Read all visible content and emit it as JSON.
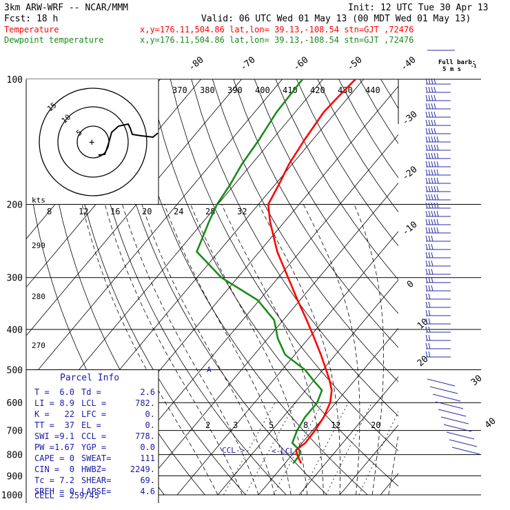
{
  "header": {
    "title": "3km ARW-WRF -- NCAR/MMM",
    "init": "Init: 12 UTC Tue 30 Apr 13",
    "fcst": "Fcst:   18 h",
    "valid": "Valid: 06 UTC Wed 01 May 13 (00 MDT Wed 01 May 13)",
    "temp_label": "Temperature",
    "temp_info": "x,y=176.11,504.86   lat,lon= 39.13,-108.54  stn=GJT ,72476",
    "dew_label": "Dewpoint temperature",
    "dew_info": "x,y=176.11,504.86   lat,lon= 39.13,-108.54  stn=GJT ,72476"
  },
  "colors": {
    "temperature": "#ff0000",
    "dewpoint": "#1a8a1a",
    "parcel_text": "#1a1aa8",
    "wind": "#2a2aa8"
  },
  "chart_data": {
    "type": "line",
    "title": "3km ARW-WRF -- NCAR/MMM",
    "ylabel": "",
    "y_scale": "log",
    "ylim": [
      1000,
      100
    ],
    "pressure_ticks": [
      "100",
      "200",
      "300",
      "400",
      "500",
      "600",
      "700",
      "800",
      "900",
      "1000"
    ],
    "isotherm_labels": [
      "-80",
      "-70",
      "-60",
      "-50",
      "-40",
      "-30",
      "-20",
      "-10",
      "0",
      "10",
      "20",
      "30",
      "40"
    ],
    "theta_labels": [
      "370",
      "380",
      "390",
      "400",
      "410",
      "420",
      "430",
      "440"
    ],
    "mixing_ratio_labels": [
      "2",
      "3",
      "5",
      "8",
      "12",
      "20"
    ],
    "temp_scale_labels": [
      "8",
      "12",
      "16",
      "20",
      "24",
      "28",
      "32"
    ],
    "temp_scale_unit": "kts",
    "theta_side_labels": [
      "290",
      "280",
      "270"
    ],
    "series": [
      {
        "name": "Temperature",
        "pressure": [
          840,
          820,
          800,
          780,
          750,
          700,
          650,
          600,
          560,
          530,
          500,
          460,
          420,
          380,
          340,
          300,
          260,
          220,
          200,
          180,
          160,
          140,
          120,
          110,
          100
        ],
        "temperature": [
          4.0,
          2.6,
          1.2,
          0.0,
          0.8,
          0.6,
          0.0,
          -1.4,
          -3.6,
          -6.2,
          -9.2,
          -13.6,
          -18.6,
          -24.2,
          -30.6,
          -37.6,
          -45.6,
          -53.6,
          -57.6,
          -59.0,
          -60.8,
          -62.0,
          -63.0,
          -62.6,
          -62.0
        ]
      },
      {
        "name": "Dewpoint temperature",
        "pressure": [
          840,
          820,
          800,
          780,
          750,
          700,
          650,
          600,
          560,
          530,
          500,
          460,
          420,
          380,
          340,
          300,
          260,
          220,
          200,
          180,
          160,
          140,
          120,
          110,
          100
        ],
        "temperature": [
          2.0,
          2.0,
          1.8,
          0.8,
          -2.4,
          -3.8,
          -4.6,
          -4.6,
          -6.0,
          -10.2,
          -14.4,
          -22.4,
          -27.6,
          -32.2,
          -40.4,
          -54.0,
          -65.4,
          -68.6,
          -70.2,
          -71.0,
          -72.4,
          -73.2,
          -74.6,
          -74.8,
          -75.0
        ]
      }
    ]
  },
  "hodograph": {
    "ring_labels": [
      "15",
      "10",
      "5"
    ],
    "plus": "+"
  },
  "wind_panel": {
    "title": "Full barb:",
    "subtitle": "5 m s",
    "exp": "-1"
  },
  "annotations": {
    "ccl": "CCL->",
    "lcl": "<-LCL"
  },
  "parcel_info": {
    "title": "Parcel Info",
    "rows": [
      {
        "l1": "T   =",
        "v1": "6.0",
        "l2": "Td  =",
        "v2": "2.6"
      },
      {
        "l1": "LI  =",
        "v1": "8.9",
        "l2": "LCL =",
        "v2": "782."
      },
      {
        "l1": "K   =",
        "v1": "22",
        "l2": "LFC =",
        "v2": "0."
      },
      {
        "l1": "TT  =",
        "v1": "37",
        "l2": "EL  =",
        "v2": "0."
      },
      {
        "l1": "SWI =",
        "v1": "9.1",
        "l2": "CCL =",
        "v2": "778."
      },
      {
        "l1": "PW  =",
        "v1": "1.67",
        "l2": "YGP =",
        "v2": "0.0"
      },
      {
        "l1": "CAPE =",
        "v1": "0",
        "l2": "SWEAT=",
        "v2": "111"
      },
      {
        "l1": "CIN =",
        "v1": "0",
        "l2": "HWBZ=",
        "v2": "2249."
      },
      {
        "l1": "Tc  =",
        "v1": "7.2",
        "l2": "SHEAR=",
        "v2": "69."
      },
      {
        "l1": "SREH =",
        "v1": "0",
        "l2": "LAPSE=",
        "v2": "4.6"
      }
    ],
    "cell": "CELL = 259/45"
  }
}
